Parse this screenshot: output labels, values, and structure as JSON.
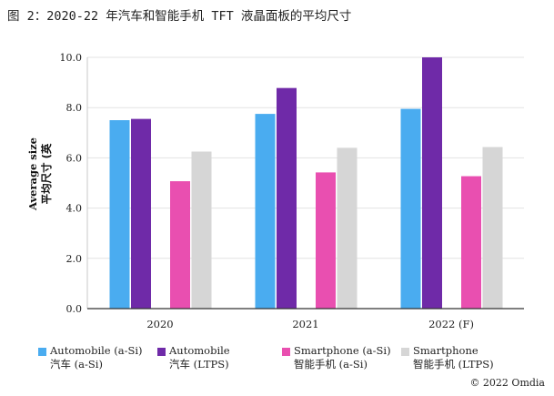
{
  "figure_title": "图 2：2020-22 年汽车和智能手机 TFT 液晶面板的平均尺寸",
  "credit": "© 2022 Omdia",
  "colors": {
    "automobile_asi": "#4aacf0",
    "automobile_ltps": "#6f2aa8",
    "smartphone_asi": "#e94fb0",
    "smartphone_ltps": "#d6d6d6",
    "grid": "#e3e3e3",
    "axis": "#333333"
  },
  "chart_data": {
    "type": "bar",
    "title": "图 2：2020-22 年汽车和智能手机 TFT 液晶面板的平均尺寸",
    "categories": [
      "2020",
      "2021",
      "2022 (F)"
    ],
    "ylabel_en": "Average size",
    "ylabel_cn": "平均尺寸 (英",
    "ylim": [
      0,
      10
    ],
    "yticks": [
      "0.0",
      "2.0",
      "4.0",
      "6.0",
      "8.0",
      "10.0"
    ],
    "grid": true,
    "series": [
      {
        "name_en": "Automobile (a-Si)",
        "name_cn": "汽车 (a-Si)",
        "color_key": "automobile_asi",
        "values": [
          7.5,
          7.75,
          7.95
        ]
      },
      {
        "name_en": "Automobile",
        "name_cn": "汽车 (LTPS)",
        "color_key": "automobile_ltps",
        "values": [
          7.55,
          8.78,
          10.0
        ]
      },
      {
        "name_en": "Smartphone (a-Si)",
        "name_cn": "智能手机 (a-Si)",
        "color_key": "smartphone_asi",
        "values": [
          5.07,
          5.42,
          5.27
        ]
      },
      {
        "name_en": "Smartphone",
        "name_cn": "智能手机 (LTPS)",
        "color_key": "smartphone_ltps",
        "values": [
          6.25,
          6.4,
          6.43
        ]
      }
    ]
  }
}
